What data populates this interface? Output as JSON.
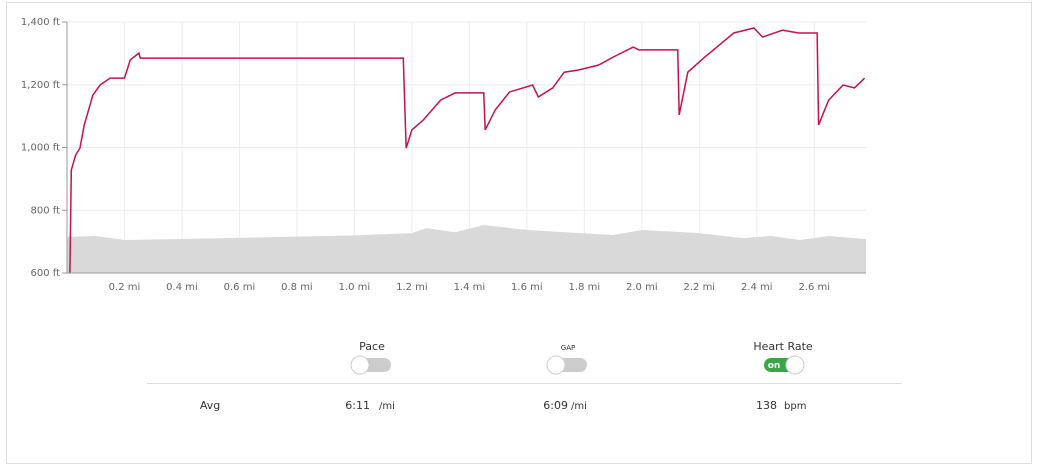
{
  "chart_data": {
    "type": "line",
    "xlim": [
      0,
      2.78
    ],
    "ylim": [
      600,
      1400
    ],
    "xticks": [
      {
        "value": 0.2,
        "label": "0.2 mi"
      },
      {
        "value": 0.4,
        "label": "0.4 mi"
      },
      {
        "value": 0.6,
        "label": "0.6 mi"
      },
      {
        "value": 0.8,
        "label": "0.8 mi"
      },
      {
        "value": 1.0,
        "label": "1.0 mi"
      },
      {
        "value": 1.2,
        "label": "1.2 mi"
      },
      {
        "value": 1.4,
        "label": "1.4 mi"
      },
      {
        "value": 1.6,
        "label": "1.6 mi"
      },
      {
        "value": 1.8,
        "label": "1.8 mi"
      },
      {
        "value": 2.0,
        "label": "2.0 mi"
      },
      {
        "value": 2.2,
        "label": "2.2 mi"
      },
      {
        "value": 2.4,
        "label": "2.4 mi"
      },
      {
        "value": 2.6,
        "label": "2.6 mi"
      }
    ],
    "yticks": [
      {
        "value": 600,
        "label": "600 ft"
      },
      {
        "value": 800,
        "label": "800 ft"
      },
      {
        "value": 1000,
        "label": "1,000 ft"
      },
      {
        "value": 1200,
        "label": "1,200 ft"
      },
      {
        "value": 1400,
        "label": "1,400 ft"
      }
    ],
    "grid": true,
    "series": [
      {
        "kind": "area",
        "color": "#d9d9d9",
        "x": [
          0,
          0.1,
          0.2,
          0.6,
          1.0,
          1.2,
          1.25,
          1.35,
          1.45,
          1.6,
          1.9,
          2.0,
          2.2,
          2.35,
          2.45,
          2.55,
          2.65,
          2.78
        ],
        "values": [
          715,
          718,
          705,
          712,
          720,
          727,
          743,
          730,
          753,
          737,
          721,
          737,
          727,
          711,
          718,
          705,
          718,
          708
        ]
      },
      {
        "kind": "line",
        "color": "#c8104a",
        "x": [
          0.01,
          0.015,
          0.03,
          0.045,
          0.06,
          0.09,
          0.115,
          0.15,
          0.2,
          0.22,
          0.25,
          0.255,
          1.17,
          1.18,
          1.2,
          1.24,
          1.3,
          1.35,
          1.45,
          1.455,
          1.49,
          1.54,
          1.62,
          1.64,
          1.69,
          1.73,
          1.78,
          1.85,
          1.9,
          1.97,
          1.99,
          2.125,
          2.13,
          2.16,
          2.215,
          2.27,
          2.32,
          2.39,
          2.42,
          2.49,
          2.545,
          2.61,
          2.615,
          2.65,
          2.7,
          2.74,
          2.775
        ],
        "values": [
          600,
          928,
          976,
          998,
          1072,
          1167,
          1199,
          1221,
          1221,
          1279,
          1301,
          1285,
          1285,
          998,
          1056,
          1088,
          1151,
          1174,
          1174,
          1056,
          1120,
          1177,
          1199,
          1161,
          1190,
          1240,
          1247,
          1263,
          1288,
          1320,
          1311,
          1311,
          1104,
          1240,
          1285,
          1327,
          1365,
          1381,
          1352,
          1374,
          1365,
          1365,
          1072,
          1151,
          1199,
          1190,
          1221
        ]
      }
    ]
  },
  "toggles": [
    {
      "label": "Pace",
      "on": false
    },
    {
      "label": "GAP",
      "on": false
    },
    {
      "label": "Heart Rate",
      "on": true,
      "state_label": "on"
    }
  ],
  "stats": {
    "label": "Avg",
    "pace": "6:11",
    "pace_unit": "/mi",
    "gap": "6:09",
    "gap_unit": "/mi",
    "heart_rate": "138",
    "heart_rate_unit": "bpm"
  }
}
